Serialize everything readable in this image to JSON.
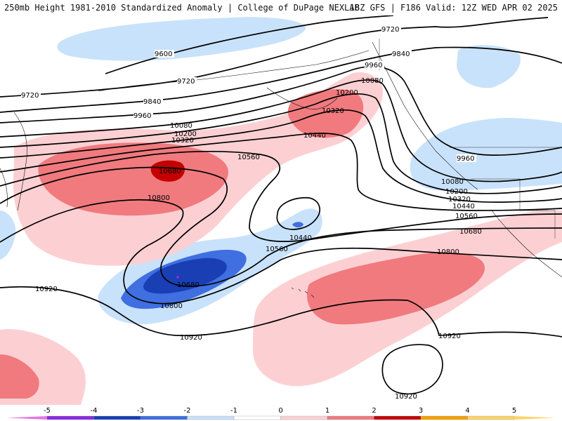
{
  "header": {
    "title": "250mb Height 1981-2010 Standardized Anomaly | College of DuPage NEXLAB",
    "run_info": "18Z GFS | F186 Valid: 12Z WED APR 02 2025"
  },
  "map": {
    "contour_labels": [
      "9600",
      "9720",
      "9720",
      "9720",
      "9840",
      "9840",
      "9960",
      "9960",
      "9960",
      "10080",
      "10080",
      "10080",
      "10200",
      "10200",
      "10200",
      "10320",
      "10320",
      "10320",
      "10440",
      "10440",
      "10440",
      "10560",
      "10560",
      "10560",
      "10680",
      "10680",
      "10680",
      "10800",
      "10800",
      "10800",
      "10920",
      "10920",
      "10920",
      "10920"
    ],
    "anomaly_colors": {
      "m5": "#e07ae0",
      "m4": "#8a2be2",
      "m3": "#1a3fb5",
      "m2": "#3f6fe0",
      "m1": "#c9e2fb",
      "p1": "#fcd0d3",
      "p2": "#f07a7e",
      "p3": "#c40000",
      "p4": "#f5a100",
      "p5": "#ffd36b"
    }
  },
  "legend": {
    "ticks": [
      "-5",
      "-4",
      "-3",
      "-2",
      "-1",
      "0",
      "1",
      "2",
      "3",
      "4",
      "5"
    ],
    "colors": [
      "#e07ae0",
      "#8a2be2",
      "#1a3fb5",
      "#3f6fe0",
      "#c9e2fb",
      "#ffffff",
      "#fcd0d3",
      "#f07a7e",
      "#c40000",
      "#f5a100",
      "#ffd36b"
    ]
  }
}
